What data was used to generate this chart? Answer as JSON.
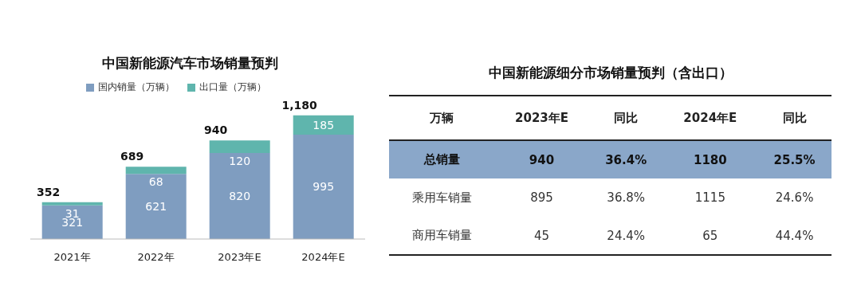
{
  "chart_data": [
    {
      "type": "bar",
      "title": "中国新能源汽车市场销量预判",
      "categories": [
        "2021年",
        "2022年",
        "2023年E",
        "2024年E"
      ],
      "stacked": true,
      "data_labels": true,
      "legend": "top",
      "totals": [
        "352",
        "689",
        "940",
        "1,180"
      ],
      "series": [
        {
          "name": "国内销量（万辆）",
          "color": "#7f9dc0",
          "values": [
            321,
            621,
            820,
            995
          ]
        },
        {
          "name": "出口量（万辆）",
          "color": "#5fb5ad",
          "values": [
            31,
            68,
            120,
            185
          ]
        }
      ]
    },
    {
      "type": "other",
      "title": "中国新能源细分市场销量预判（含出口）",
      "categories": [
        "万辆",
        "2023年E",
        "同比",
        "2024年E",
        "同比"
      ],
      "y_categories": [
        "总销量",
        "乘用车销量",
        "商用车销量"
      ],
      "cell_labels": [
        [
          "940",
          "36.4%",
          "1180",
          "25.5%"
        ],
        [
          "895",
          "36.8%",
          "1115",
          "24.6%"
        ],
        [
          "45",
          "24.4%",
          "65",
          "44.4%"
        ]
      ]
    }
  ]
}
